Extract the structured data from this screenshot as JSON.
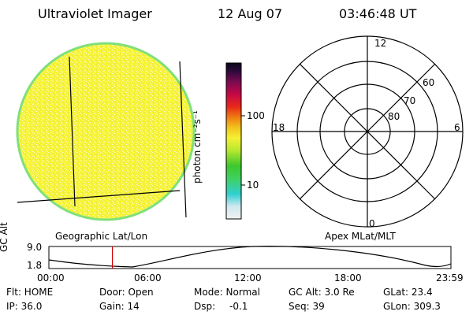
{
  "header": {
    "instrument": "Ultraviolet Imager",
    "date": "12 Aug 07",
    "time": "03:46:48 UT"
  },
  "colorbar": {
    "label": "photon cm⁻²s⁻¹",
    "ticks": [
      "100",
      "10"
    ]
  },
  "left_panel": {
    "caption": "Geographic Lat/Lon"
  },
  "polar_plot": {
    "caption": "Apex MLat/MLT",
    "mlt_labels": [
      "12",
      "18",
      "6",
      "0"
    ],
    "lat_labels": [
      "60",
      "70",
      "80"
    ]
  },
  "altitude_strip": {
    "axis_label": "GC Alt",
    "y_ticks": [
      "9.0",
      "1.8"
    ],
    "time_ticks": [
      "00:00",
      "06:00",
      "12:00",
      "18:00",
      "23:59"
    ],
    "current_time_fraction": 0.158
  },
  "status": {
    "row1": {
      "flt": "Flt: HOME",
      "door": "Door: Open",
      "mode": "Mode: Normal",
      "gcalt": "GC Alt: 3.0 Re",
      "glat": "GLat: 23.4"
    },
    "row2": {
      "ip": "IP: 36.0",
      "gain": "Gain: 14",
      "dsp_label": "Dsp:",
      "dsp_value": "-0.1",
      "seq": "Seq: 39",
      "glon": "GLon: 309.3"
    }
  },
  "colors": {
    "image_fill": "#f5f23a",
    "image_edge": "#7fe07a",
    "marker": "#d00000"
  }
}
